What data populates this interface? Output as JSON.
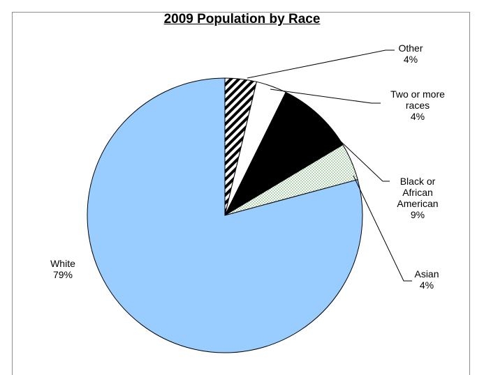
{
  "chart_data": {
    "type": "pie",
    "title": "2009 Population by Race",
    "start_angle_deg": 90,
    "direction": "clockwise",
    "slices": [
      {
        "name": "Other",
        "value": 3.7,
        "label_lines": [
          "Other",
          "4%"
        ],
        "fill": "hatch",
        "color": "#000000"
      },
      {
        "name": "Two or more races",
        "value": 3.6,
        "label_lines": [
          "Two or more",
          "races",
          "4%"
        ],
        "fill": "solid",
        "color": "#ffffff"
      },
      {
        "name": "Black or African American",
        "value": 9.1,
        "label_lines": [
          "Black or",
          "African",
          "American",
          "9%"
        ],
        "fill": "solid",
        "color": "#000000"
      },
      {
        "name": "Asian",
        "value": 4.4,
        "label_lines": [
          "Asian",
          "4%"
        ],
        "fill": "dots",
        "color": "#e8f4e8"
      },
      {
        "name": "White",
        "value": 79.2,
        "label_lines": [
          "White",
          "79%"
        ],
        "fill": "solid",
        "color": "#99ccff"
      }
    ]
  }
}
